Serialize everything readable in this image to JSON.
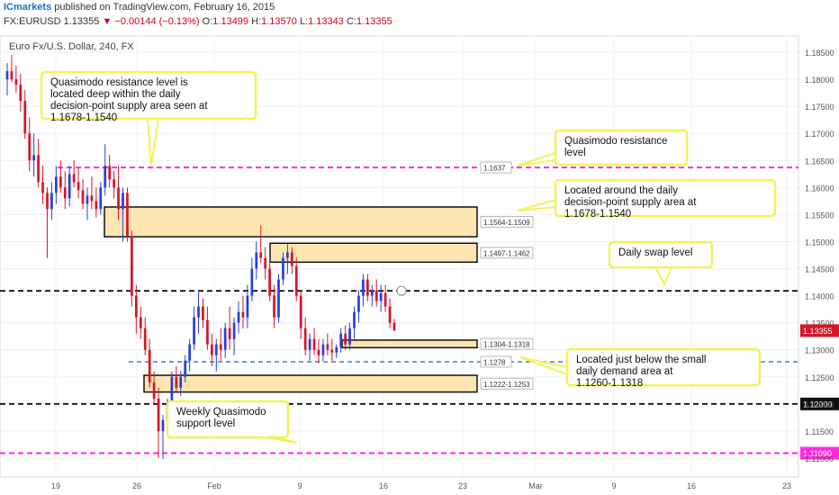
{
  "header": {
    "brand": "ICmarkets",
    "published": "published on TradingView.com, February 16, 2015",
    "symbol": "FX:EURUSD",
    "last": "1.13355",
    "change_arrow": "▼",
    "change": "−0.00144 (−0.13%)",
    "open_label": "O:",
    "open": "1.13499",
    "high_label": "H:",
    "high": "1.13570",
    "low_label": "L:",
    "low": "1.13343",
    "close_label": "C:",
    "close": "1.13355"
  },
  "colors": {
    "up": "#2b3fd6",
    "down": "#d6152a",
    "magenta": "#ff2bd9",
    "blue_dash": "#3a7bd5",
    "zone_fill": "#fce5b0",
    "callout_border": "#f3f25a"
  },
  "chart_data": {
    "type": "candlestick",
    "title": "Euro Fx/U.S. Dollar, 240, FX",
    "ylim": [
      1.1065,
      1.188
    ],
    "y_ticks": [
      "1.18500",
      "1.18000",
      "1.17500",
      "1.17000",
      "1.16500",
      "1.16000",
      "1.15500",
      "1.15000",
      "1.14500",
      "1.14000",
      "1.13500",
      "1.13000",
      "1.12500",
      "1.12000",
      "1.11500",
      "1.11000"
    ],
    "x_ticks": [
      "19",
      "26",
      "Feb",
      "9",
      "16",
      "23",
      "Mar",
      "9",
      "16",
      "23"
    ],
    "last_price_label": "1.13355",
    "levels": [
      {
        "price": 1.1637,
        "label": "1.1637",
        "style": "magenta-dash"
      },
      {
        "price": 1.1409,
        "label": "",
        "style": "black-dash"
      },
      {
        "price": 1.1278,
        "label": "1.1278",
        "style": "blue-dash"
      },
      {
        "price": 1.12,
        "label": "1.12000",
        "style": "black-dash"
      },
      {
        "price": 1.1109,
        "label": "1.11090",
        "style": "magenta-dash"
      }
    ],
    "zones": [
      {
        "top": 1.1564,
        "bottom": 1.1509,
        "label": "1.1564-1.1509"
      },
      {
        "top": 1.1497,
        "bottom": 1.1462,
        "label": "1.1497-1.1462"
      },
      {
        "top": 1.1318,
        "bottom": 1.1304,
        "label": "1.1304-1.1318"
      },
      {
        "top": 1.1253,
        "bottom": 1.1222,
        "label": "1.1222-1.1253"
      }
    ],
    "callouts": [
      {
        "text": "Quasimodo resistance level is located deep within the daily decision-point supply area seen at 1.1678-1.1540"
      },
      {
        "text": "Quasimodo resistance level"
      },
      {
        "text": "Located around the daily decision-point supply area at 1.1678-1.1540"
      },
      {
        "text": "Daily swap level"
      },
      {
        "text": "Located just below the small daily demand area at 1.1260-1.1318"
      },
      {
        "text": "Weekly Quasimodo support level"
      }
    ],
    "candles": [
      {
        "o": 1.18,
        "h": 1.183,
        "l": 1.177,
        "c": 1.1815
      },
      {
        "o": 1.1815,
        "h": 1.1845,
        "l": 1.1795,
        "c": 1.18
      },
      {
        "o": 1.18,
        "h": 1.1825,
        "l": 1.1775,
        "c": 1.179
      },
      {
        "o": 1.179,
        "h": 1.181,
        "l": 1.174,
        "c": 1.176
      },
      {
        "o": 1.176,
        "h": 1.178,
        "l": 1.169,
        "c": 1.17
      },
      {
        "o": 1.17,
        "h": 1.173,
        "l": 1.163,
        "c": 1.165
      },
      {
        "o": 1.165,
        "h": 1.17,
        "l": 1.162,
        "c": 1.166
      },
      {
        "o": 1.166,
        "h": 1.169,
        "l": 1.16,
        "c": 1.161
      },
      {
        "o": 1.161,
        "h": 1.164,
        "l": 1.157,
        "c": 1.159
      },
      {
        "o": 1.159,
        "h": 1.16,
        "l": 1.147,
        "c": 1.156
      },
      {
        "o": 1.156,
        "h": 1.161,
        "l": 1.154,
        "c": 1.159
      },
      {
        "o": 1.159,
        "h": 1.164,
        "l": 1.157,
        "c": 1.162
      },
      {
        "o": 1.162,
        "h": 1.165,
        "l": 1.159,
        "c": 1.16
      },
      {
        "o": 1.16,
        "h": 1.163,
        "l": 1.156,
        "c": 1.158
      },
      {
        "o": 1.158,
        "h": 1.164,
        "l": 1.1565,
        "c": 1.1625
      },
      {
        "o": 1.1625,
        "h": 1.165,
        "l": 1.16,
        "c": 1.161
      },
      {
        "o": 1.161,
        "h": 1.1635,
        "l": 1.158,
        "c": 1.1595
      },
      {
        "o": 1.1595,
        "h": 1.1615,
        "l": 1.156,
        "c": 1.157
      },
      {
        "o": 1.157,
        "h": 1.16,
        "l": 1.154,
        "c": 1.1585
      },
      {
        "o": 1.1585,
        "h": 1.162,
        "l": 1.156,
        "c": 1.1575
      },
      {
        "o": 1.1575,
        "h": 1.16,
        "l": 1.1545,
        "c": 1.156
      },
      {
        "o": 1.156,
        "h": 1.161,
        "l": 1.155,
        "c": 1.16
      },
      {
        "o": 1.16,
        "h": 1.168,
        "l": 1.1585,
        "c": 1.164
      },
      {
        "o": 1.164,
        "h": 1.166,
        "l": 1.16,
        "c": 1.1615
      },
      {
        "o": 1.1615,
        "h": 1.163,
        "l": 1.158,
        "c": 1.16
      },
      {
        "o": 1.16,
        "h": 1.164,
        "l": 1.154,
        "c": 1.156
      },
      {
        "o": 1.156,
        "h": 1.16,
        "l": 1.15,
        "c": 1.159
      },
      {
        "o": 1.159,
        "h": 1.16,
        "l": 1.15,
        "c": 1.151
      },
      {
        "o": 1.151,
        "h": 1.152,
        "l": 1.138,
        "c": 1.14
      },
      {
        "o": 1.14,
        "h": 1.142,
        "l": 1.133,
        "c": 1.136
      },
      {
        "o": 1.136,
        "h": 1.138,
        "l": 1.132,
        "c": 1.134
      },
      {
        "o": 1.134,
        "h": 1.136,
        "l": 1.129,
        "c": 1.13
      },
      {
        "o": 1.13,
        "h": 1.132,
        "l": 1.123,
        "c": 1.124
      },
      {
        "o": 1.124,
        "h": 1.126,
        "l": 1.12,
        "c": 1.121
      },
      {
        "o": 1.121,
        "h": 1.123,
        "l": 1.11,
        "c": 1.115
      },
      {
        "o": 1.115,
        "h": 1.118,
        "l": 1.1098,
        "c": 1.117
      },
      {
        "o": 1.117,
        "h": 1.121,
        "l": 1.115,
        "c": 1.12
      },
      {
        "o": 1.12,
        "h": 1.126,
        "l": 1.119,
        "c": 1.125
      },
      {
        "o": 1.125,
        "h": 1.127,
        "l": 1.122,
        "c": 1.123
      },
      {
        "o": 1.123,
        "h": 1.126,
        "l": 1.1215,
        "c": 1.125
      },
      {
        "o": 1.125,
        "h": 1.129,
        "l": 1.124,
        "c": 1.128
      },
      {
        "o": 1.128,
        "h": 1.132,
        "l": 1.126,
        "c": 1.131
      },
      {
        "o": 1.131,
        "h": 1.138,
        "l": 1.13,
        "c": 1.136
      },
      {
        "o": 1.136,
        "h": 1.141,
        "l": 1.133,
        "c": 1.138
      },
      {
        "o": 1.138,
        "h": 1.1395,
        "l": 1.134,
        "c": 1.1355
      },
      {
        "o": 1.1355,
        "h": 1.138,
        "l": 1.13,
        "c": 1.131
      },
      {
        "o": 1.131,
        "h": 1.133,
        "l": 1.127,
        "c": 1.129
      },
      {
        "o": 1.129,
        "h": 1.132,
        "l": 1.126,
        "c": 1.131
      },
      {
        "o": 1.131,
        "h": 1.134,
        "l": 1.128,
        "c": 1.13
      },
      {
        "o": 1.13,
        "h": 1.135,
        "l": 1.1285,
        "c": 1.134
      },
      {
        "o": 1.134,
        "h": 1.138,
        "l": 1.13,
        "c": 1.132
      },
      {
        "o": 1.132,
        "h": 1.136,
        "l": 1.129,
        "c": 1.135
      },
      {
        "o": 1.135,
        "h": 1.139,
        "l": 1.133,
        "c": 1.137
      },
      {
        "o": 1.137,
        "h": 1.14,
        "l": 1.134,
        "c": 1.136
      },
      {
        "o": 1.136,
        "h": 1.142,
        "l": 1.134,
        "c": 1.14
      },
      {
        "o": 1.14,
        "h": 1.147,
        "l": 1.139,
        "c": 1.145
      },
      {
        "o": 1.145,
        "h": 1.15,
        "l": 1.143,
        "c": 1.148
      },
      {
        "o": 1.148,
        "h": 1.153,
        "l": 1.146,
        "c": 1.147
      },
      {
        "o": 1.147,
        "h": 1.149,
        "l": 1.143,
        "c": 1.145
      },
      {
        "o": 1.145,
        "h": 1.147,
        "l": 1.139,
        "c": 1.14
      },
      {
        "o": 1.14,
        "h": 1.142,
        "l": 1.134,
        "c": 1.136
      },
      {
        "o": 1.136,
        "h": 1.144,
        "l": 1.135,
        "c": 1.143
      },
      {
        "o": 1.143,
        "h": 1.148,
        "l": 1.142,
        "c": 1.147
      },
      {
        "o": 1.147,
        "h": 1.1495,
        "l": 1.144,
        "c": 1.148
      },
      {
        "o": 1.148,
        "h": 1.149,
        "l": 1.144,
        "c": 1.1455
      },
      {
        "o": 1.1455,
        "h": 1.147,
        "l": 1.139,
        "c": 1.14
      },
      {
        "o": 1.14,
        "h": 1.141,
        "l": 1.132,
        "c": 1.134
      },
      {
        "o": 1.134,
        "h": 1.136,
        "l": 1.129,
        "c": 1.13
      },
      {
        "o": 1.13,
        "h": 1.133,
        "l": 1.128,
        "c": 1.132
      },
      {
        "o": 1.132,
        "h": 1.134,
        "l": 1.129,
        "c": 1.13
      },
      {
        "o": 1.13,
        "h": 1.132,
        "l": 1.1275,
        "c": 1.129
      },
      {
        "o": 1.129,
        "h": 1.132,
        "l": 1.128,
        "c": 1.131
      },
      {
        "o": 1.131,
        "h": 1.133,
        "l": 1.129,
        "c": 1.13
      },
      {
        "o": 1.13,
        "h": 1.132,
        "l": 1.128,
        "c": 1.1295
      },
      {
        "o": 1.1295,
        "h": 1.131,
        "l": 1.1285,
        "c": 1.1305
      },
      {
        "o": 1.1305,
        "h": 1.134,
        "l": 1.1295,
        "c": 1.133
      },
      {
        "o": 1.133,
        "h": 1.1345,
        "l": 1.13,
        "c": 1.131
      },
      {
        "o": 1.131,
        "h": 1.135,
        "l": 1.13,
        "c": 1.134
      },
      {
        "o": 1.134,
        "h": 1.138,
        "l": 1.132,
        "c": 1.137
      },
      {
        "o": 1.137,
        "h": 1.141,
        "l": 1.135,
        "c": 1.14
      },
      {
        "o": 1.14,
        "h": 1.144,
        "l": 1.138,
        "c": 1.143
      },
      {
        "o": 1.143,
        "h": 1.144,
        "l": 1.139,
        "c": 1.14
      },
      {
        "o": 1.14,
        "h": 1.142,
        "l": 1.138,
        "c": 1.141
      },
      {
        "o": 1.141,
        "h": 1.143,
        "l": 1.138,
        "c": 1.139
      },
      {
        "o": 1.139,
        "h": 1.142,
        "l": 1.137,
        "c": 1.1405
      },
      {
        "o": 1.1405,
        "h": 1.142,
        "l": 1.137,
        "c": 1.138
      },
      {
        "o": 1.138,
        "h": 1.1395,
        "l": 1.134,
        "c": 1.135
      },
      {
        "o": 1.135,
        "h": 1.1357,
        "l": 1.1334,
        "c": 1.1336
      }
    ]
  }
}
